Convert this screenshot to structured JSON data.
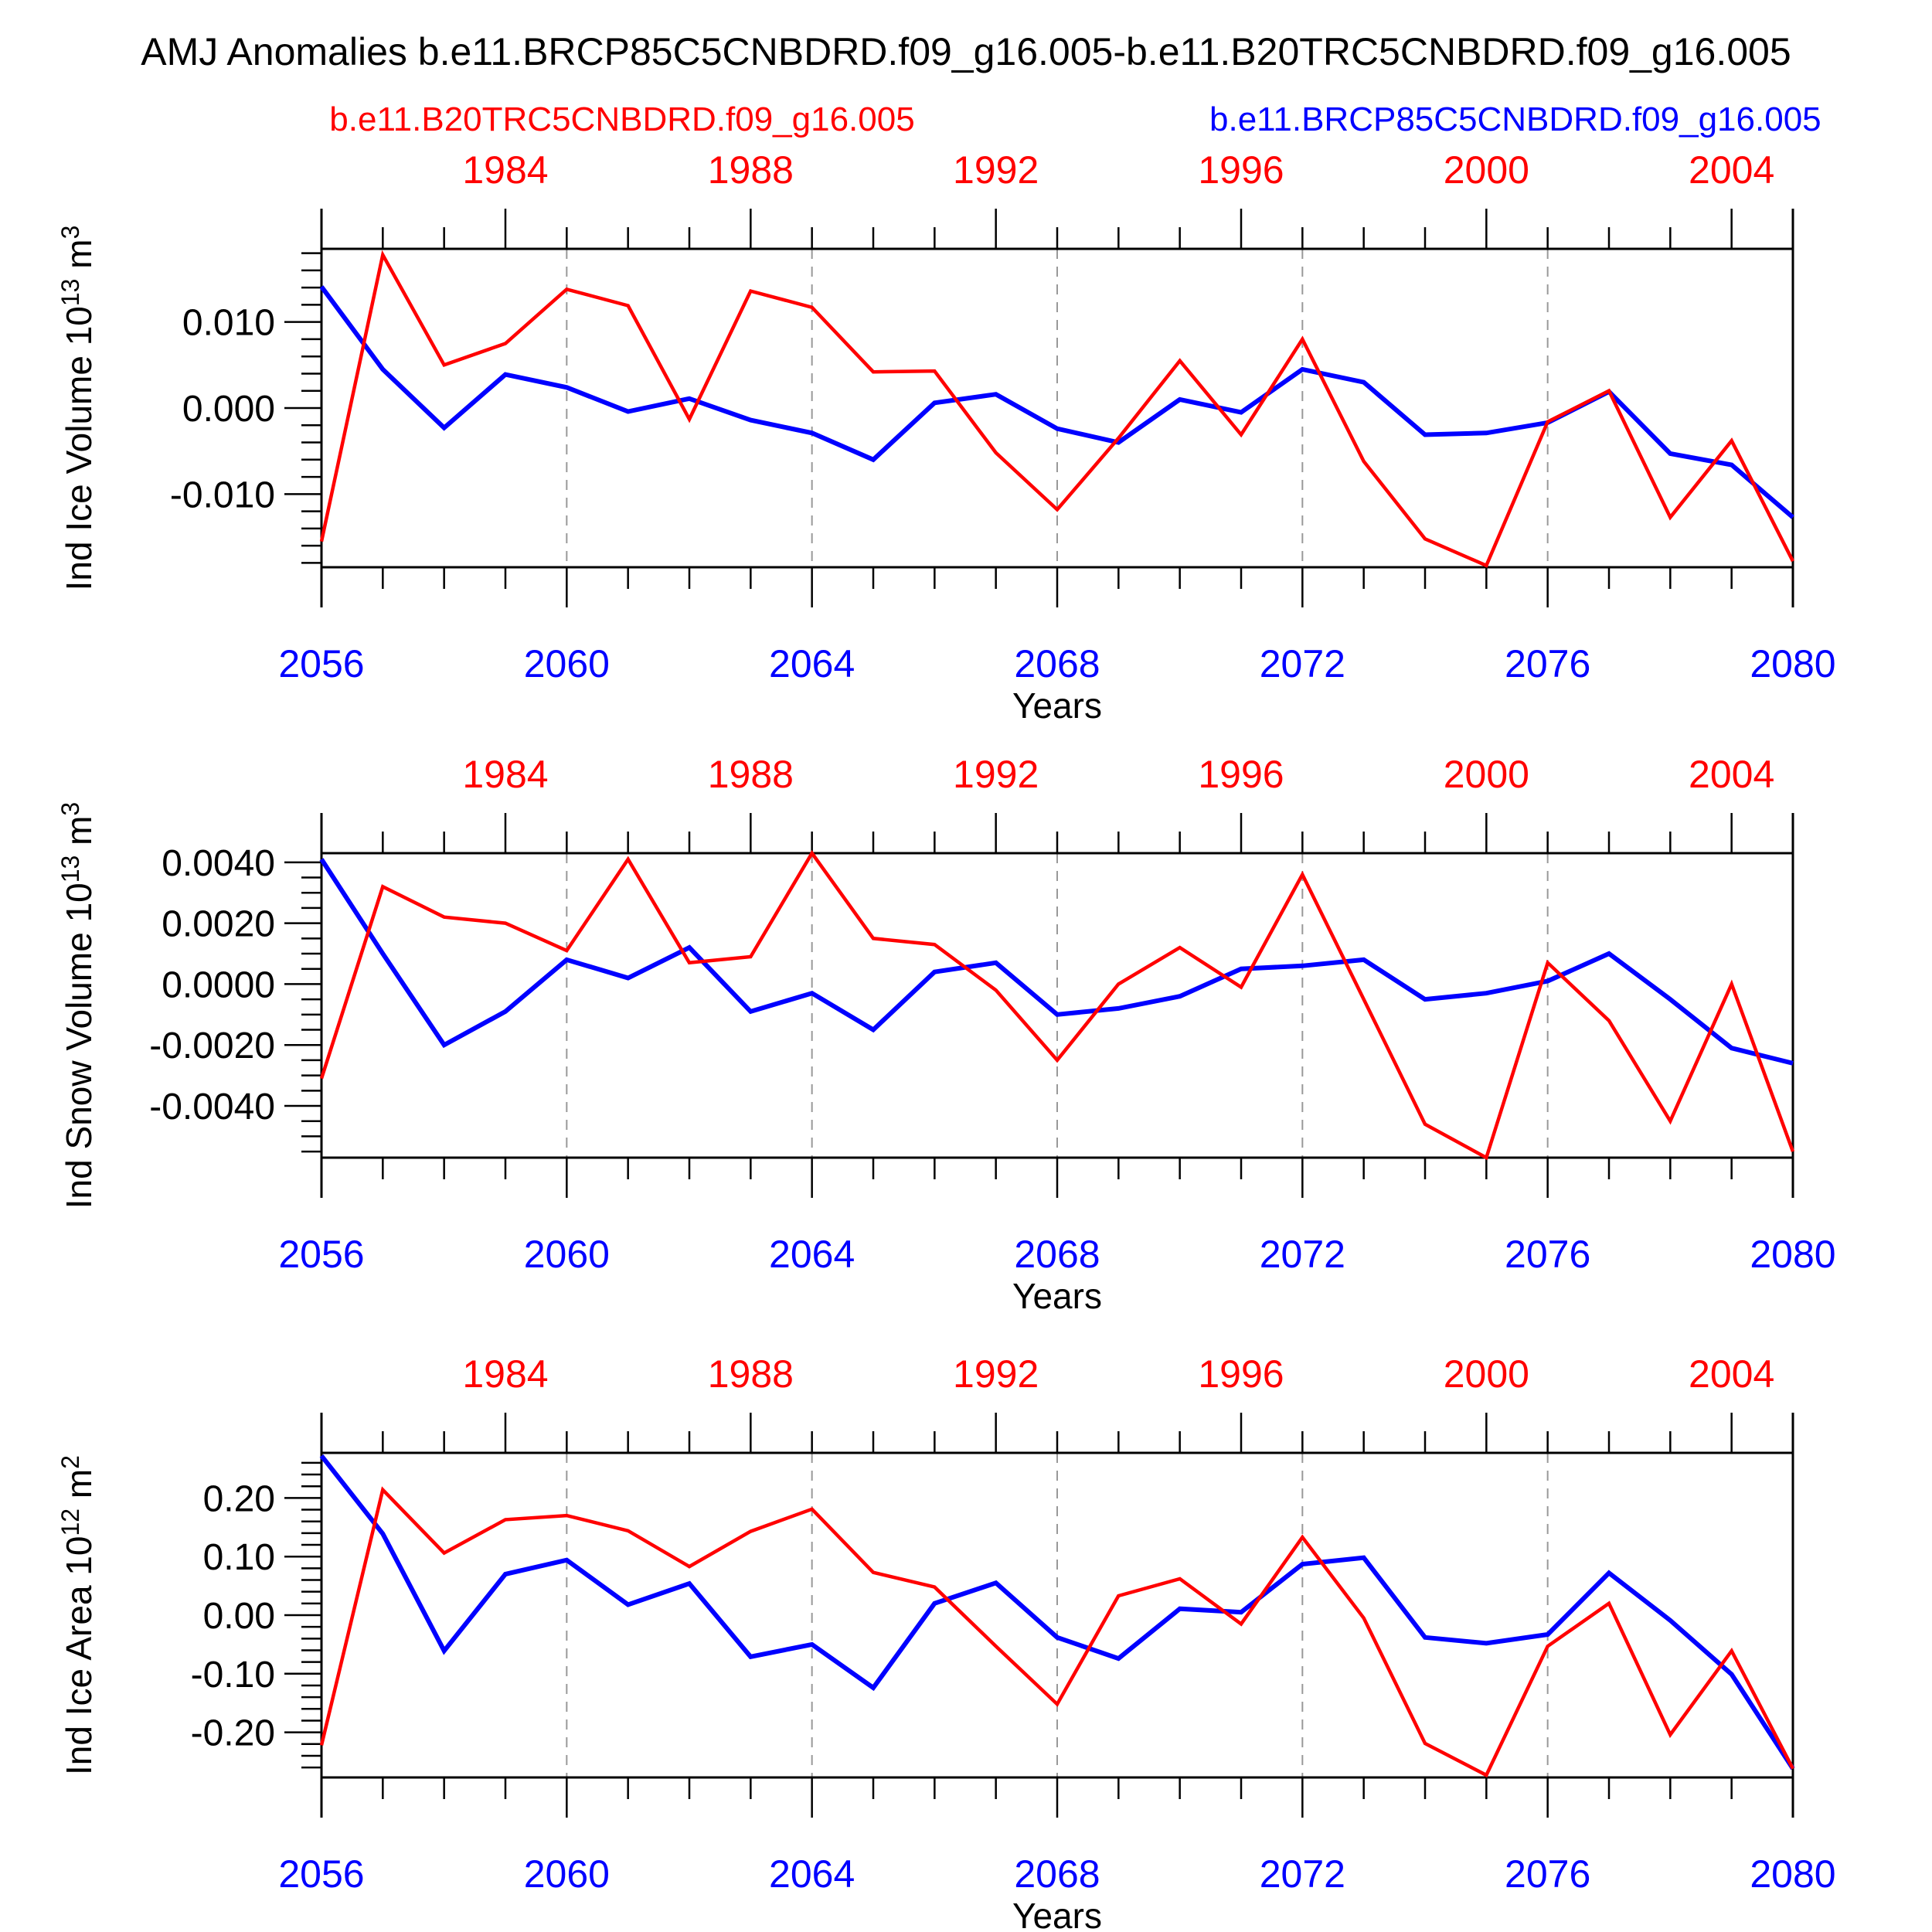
{
  "title": "AMJ Anomalies b.e11.BRCP85C5CNBDRD.f09_g16.005-b.e11.B20TRC5CNBDRD.f09_g16.005",
  "legend": {
    "red": {
      "label": "b.e11.B20TRC5CNBDRD.f09_g16.005",
      "color": "#ff0000"
    },
    "blue": {
      "label": "b.e11.BRCP85C5CNBDRD.f09_g16.005",
      "color": "#0000ff"
    }
  },
  "colors": {
    "axis": "#000000",
    "grid": "#999999",
    "red": "#ff0000",
    "blue": "#0000ff"
  },
  "chart_data": [
    {
      "type": "line",
      "name": "ind-ice-volume",
      "ylabel_rich": [
        {
          "t": "Ind Ice Volume 10"
        },
        {
          "t": "13",
          "sup": true
        },
        {
          "t": " m"
        },
        {
          "t": "3",
          "sup": true
        }
      ],
      "xlabel": "Years",
      "ylim": [
        -0.0185,
        0.0185
      ],
      "ytick_labels": [
        "0.010",
        "0.000",
        "-0.010"
      ],
      "ytick_values": [
        0.01,
        0.0,
        -0.01
      ],
      "y_minor_step": 0.002,
      "grid_years": [
        2060,
        2064,
        2068,
        2072,
        2076
      ],
      "top_axis": {
        "labels": [
          "1984",
          "1988",
          "1992",
          "1996",
          "2000",
          "2004"
        ],
        "years": [
          2059,
          2063,
          2067,
          2071,
          2075,
          2079
        ]
      },
      "bottom_axis": {
        "labels": [
          "2056",
          "2060",
          "2064",
          "2068",
          "2072",
          "2076",
          "2080"
        ],
        "years": [
          2056,
          2060,
          2064,
          2068,
          2072,
          2076,
          2080
        ]
      },
      "years": [
        2056,
        2057,
        2058,
        2059,
        2060,
        2061,
        2062,
        2063,
        2064,
        2065,
        2066,
        2067,
        2068,
        2069,
        2070,
        2071,
        2072,
        2073,
        2074,
        2075,
        2076,
        2077,
        2078,
        2079,
        2080
      ],
      "series": [
        {
          "name": "b.e11.B20TRC5CNBDRD.f09_g16.005",
          "color": "#ff0000",
          "values": [
            -0.0155,
            0.0178,
            0.005,
            0.0075,
            0.0138,
            0.0119,
            -0.0013,
            0.0136,
            0.0117,
            0.0042,
            0.0043,
            -0.0052,
            -0.0118,
            -0.0035,
            0.0055,
            -0.0031,
            0.008,
            -0.0062,
            -0.0152,
            -0.0183,
            -0.0016,
            0.002,
            -0.0127,
            -0.0038,
            -0.0178
          ]
        },
        {
          "name": "b.e11.BRCP85C5CNBDRD.f09_g16.005",
          "color": "#0000ff",
          "values": [
            0.0141,
            0.0045,
            -0.0023,
            0.0039,
            0.0024,
            -0.0004,
            0.0011,
            -0.0014,
            -0.0029,
            -0.006,
            0.0006,
            0.0016,
            -0.0024,
            -0.004,
            0.001,
            -0.0005,
            0.0045,
            0.003,
            -0.0031,
            -0.0029,
            -0.0017,
            0.0019,
            -0.0053,
            -0.0066,
            -0.0127
          ]
        }
      ]
    },
    {
      "type": "line",
      "name": "ind-snow-volume",
      "ylabel_rich": [
        {
          "t": "Ind Snow Volume 10"
        },
        {
          "t": "13",
          "sup": true
        },
        {
          "t": " m"
        },
        {
          "t": "3",
          "sup": true
        }
      ],
      "xlabel": "Years",
      "ylim": [
        -0.0057,
        0.0043
      ],
      "ytick_labels": [
        "0.0040",
        "0.0020",
        "0.0000",
        "-0.0020",
        "-0.0040"
      ],
      "ytick_values": [
        0.004,
        0.002,
        0.0,
        -0.002,
        -0.004
      ],
      "y_minor_step": 0.0005,
      "grid_years": [
        2060,
        2064,
        2068,
        2072,
        2076
      ],
      "top_axis": {
        "labels": [
          "1984",
          "1988",
          "1992",
          "1996",
          "2000",
          "2004"
        ],
        "years": [
          2059,
          2063,
          2067,
          2071,
          2075,
          2079
        ]
      },
      "bottom_axis": {
        "labels": [
          "2056",
          "2060",
          "2064",
          "2068",
          "2072",
          "2076",
          "2080"
        ],
        "years": [
          2056,
          2060,
          2064,
          2068,
          2072,
          2076,
          2080
        ]
      },
      "years": [
        2056,
        2057,
        2058,
        2059,
        2060,
        2061,
        2062,
        2063,
        2064,
        2065,
        2066,
        2067,
        2068,
        2069,
        2070,
        2071,
        2072,
        2073,
        2074,
        2075,
        2076,
        2077,
        2078,
        2079,
        2080
      ],
      "series": [
        {
          "name": "b.e11.B20TRC5CNBDRD.f09_g16.005",
          "color": "#ff0000",
          "values": [
            -0.0031,
            0.0032,
            0.0022,
            0.002,
            0.0011,
            0.0041,
            0.0007,
            0.0009,
            0.0043,
            0.0015,
            0.0013,
            -0.0002,
            -0.0025,
            0.0,
            0.0012,
            -0.0001,
            0.0036,
            -0.0005,
            -0.0046,
            -0.0057,
            0.0007,
            -0.0012,
            -0.0045,
            0.0,
            -0.0055
          ]
        },
        {
          "name": "b.e11.BRCP85C5CNBDRD.f09_g16.005",
          "color": "#0000ff",
          "values": [
            0.0041,
            0.001,
            -0.002,
            -0.0009,
            0.0008,
            0.0002,
            0.0012,
            -0.0009,
            -0.0003,
            -0.0015,
            0.0004,
            0.0007,
            -0.001,
            -0.0008,
            -0.0004,
            0.0005,
            0.0006,
            0.0008,
            -0.0005,
            -0.0003,
            0.0001,
            0.001,
            -0.0005,
            -0.0021,
            -0.0026
          ]
        }
      ]
    },
    {
      "type": "line",
      "name": "ind-ice-area",
      "ylabel_rich": [
        {
          "t": "Ind Ice Area 10"
        },
        {
          "t": "12",
          "sup": true
        },
        {
          "t": " m"
        },
        {
          "t": "2",
          "sup": true
        }
      ],
      "xlabel": "Years",
      "ylim": [
        -0.277,
        0.277
      ],
      "ytick_labels": [
        "0.20",
        "0.10",
        "0.00",
        "-0.10",
        "-0.20"
      ],
      "ytick_values": [
        0.2,
        0.1,
        0.0,
        -0.1,
        -0.2
      ],
      "y_minor_step": 0.02,
      "grid_years": [
        2060,
        2064,
        2068,
        2072,
        2076
      ],
      "top_axis": {
        "labels": [
          "1984",
          "1988",
          "1992",
          "1996",
          "2000",
          "2004"
        ],
        "years": [
          2059,
          2063,
          2067,
          2071,
          2075,
          2079
        ]
      },
      "bottom_axis": {
        "labels": [
          "2056",
          "2060",
          "2064",
          "2068",
          "2072",
          "2076",
          "2080"
        ],
        "years": [
          2056,
          2060,
          2064,
          2068,
          2072,
          2076,
          2080
        ]
      },
      "years": [
        2056,
        2057,
        2058,
        2059,
        2060,
        2061,
        2062,
        2063,
        2064,
        2065,
        2066,
        2067,
        2068,
        2069,
        2070,
        2071,
        2072,
        2073,
        2074,
        2075,
        2076,
        2077,
        2078,
        2079,
        2080
      ],
      "series": [
        {
          "name": "b.e11.B20TRC5CNBDRD.f09_g16.005",
          "color": "#ff0000",
          "values": [
            -0.222,
            0.214,
            0.106,
            0.163,
            0.17,
            0.144,
            0.083,
            0.143,
            0.181,
            0.073,
            0.048,
            -0.053,
            -0.152,
            0.033,
            0.062,
            -0.015,
            0.133,
            -0.005,
            -0.219,
            -0.273,
            -0.053,
            0.02,
            -0.204,
            -0.061,
            -0.262
          ]
        },
        {
          "name": "b.e11.BRCP85C5CNBDRD.f09_g16.005",
          "color": "#0000ff",
          "values": [
            0.272,
            0.139,
            -0.061,
            0.07,
            0.094,
            0.018,
            0.054,
            -0.071,
            -0.05,
            -0.124,
            0.02,
            0.055,
            -0.038,
            -0.074,
            0.011,
            0.005,
            0.087,
            0.098,
            -0.038,
            -0.048,
            -0.033,
            0.072,
            -0.009,
            -0.101,
            -0.262
          ]
        }
      ]
    }
  ]
}
